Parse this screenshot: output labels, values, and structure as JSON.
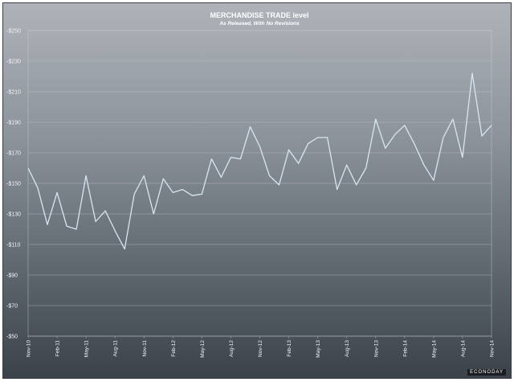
{
  "chart_data": {
    "type": "line",
    "title": "MERCHANDISE TRADE level",
    "subtitle": "As Released, With No Revisions",
    "ylim": [
      -50,
      -250
    ],
    "y_ticks": [
      "-$250",
      "-$230",
      "-$210",
      "-$190",
      "-$170",
      "-$150",
      "-$130",
      "-$110",
      "-$90",
      "-$70",
      "-$50"
    ],
    "y_tick_values": [
      -250,
      -230,
      -210,
      -190,
      -170,
      -150,
      -130,
      -110,
      -90,
      -70,
      -50
    ],
    "x_ticks": [
      "Nov-10",
      "Feb-11",
      "May-11",
      "Aug-11",
      "Nov-11",
      "Feb-12",
      "May-12",
      "Aug-12",
      "Nov-12",
      "Feb-13",
      "May-13",
      "Aug-13",
      "Nov-13",
      "Feb-14",
      "May-14",
      "Aug-14",
      "Nov-14"
    ],
    "x": [
      "Nov-10",
      "Dec-10",
      "Jan-11",
      "Feb-11",
      "Mar-11",
      "Apr-11",
      "May-11",
      "Jun-11",
      "Jul-11",
      "Aug-11",
      "Sep-11",
      "Oct-11",
      "Nov-11",
      "Dec-11",
      "Jan-12",
      "Feb-12",
      "Mar-12",
      "Apr-12",
      "May-12",
      "Jun-12",
      "Jul-12",
      "Aug-12",
      "Sep-12",
      "Oct-12",
      "Nov-12",
      "Dec-12",
      "Jan-13",
      "Feb-13",
      "Mar-13",
      "Apr-13",
      "May-13",
      "Jun-13",
      "Jul-13",
      "Aug-13",
      "Sep-13",
      "Oct-13",
      "Nov-13",
      "Dec-13",
      "Jan-14",
      "Feb-14",
      "Mar-14",
      "Apr-14",
      "May-14",
      "Jun-14",
      "Jul-14",
      "Aug-14",
      "Sep-14",
      "Oct-14",
      "Nov-14"
    ],
    "series": [
      {
        "values": [
          -160,
          -147,
          -123,
          -144,
          -122,
          -120,
          -155,
          -125,
          -132,
          -119,
          -107,
          -143,
          -155,
          -130,
          -153,
          -144,
          -146,
          -142,
          -143,
          -166,
          -154,
          -167,
          -166,
          -187,
          -174,
          -155,
          -149,
          -172,
          -163,
          -176,
          -180,
          -180,
          -146,
          -162,
          -149,
          -160,
          -192,
          -173,
          -182,
          -188,
          -176,
          -162,
          -152,
          -180,
          -192,
          -167,
          -222,
          -181,
          -188
        ]
      }
    ],
    "grid": true,
    "legend": "none",
    "colors": {
      "line": "#d8e6f4"
    }
  },
  "watermark": "ECONODAY"
}
